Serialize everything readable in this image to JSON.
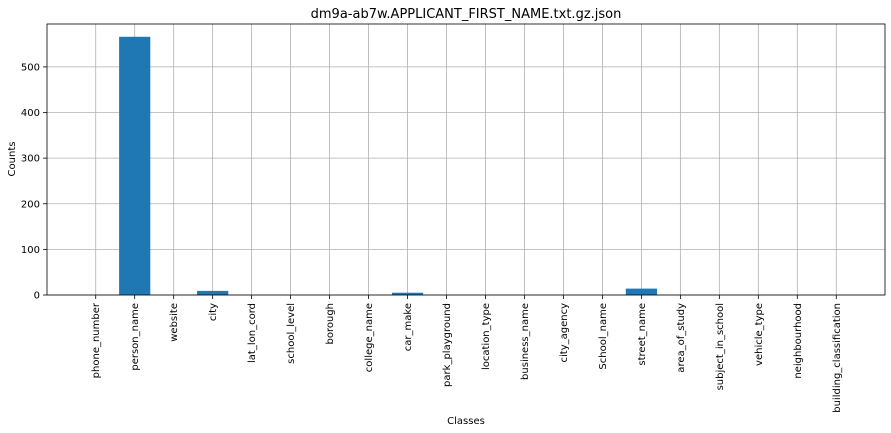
{
  "chart_data": {
    "type": "bar",
    "title": "dm9a-ab7w.APPLICANT_FIRST_NAME.txt.gz.json",
    "xlabel": "Classes",
    "ylabel": "Counts",
    "categories": [
      "phone_number",
      "person_name",
      "website",
      "city",
      "lat_lon_cord",
      "school_level",
      "borough",
      "college_name",
      "car_make",
      "park_playground",
      "location_type",
      "business_name",
      "city_agency",
      "School_name",
      "street_name",
      "area_of_study",
      "subject_in_school",
      "vehicle_type",
      "neighbourhood",
      "building_classification"
    ],
    "values": [
      0,
      566,
      0,
      9,
      0,
      0,
      0,
      0,
      5,
      0,
      0,
      0,
      0,
      0,
      14,
      0,
      0,
      0,
      0,
      0
    ],
    "ylim": [
      0,
      594
    ],
    "yticks": [
      0,
      100,
      200,
      300,
      400,
      500
    ],
    "grid": true,
    "bar_color": "#1f77b4"
  }
}
